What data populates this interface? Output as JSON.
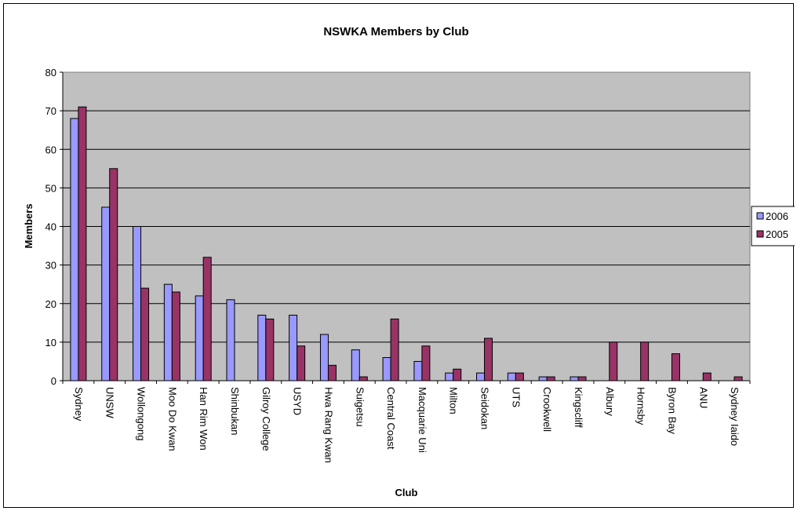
{
  "chart_data": {
    "type": "bar",
    "title": "NSWKA Members by Club",
    "xlabel": "Club",
    "ylabel": "Members",
    "ylim": [
      0,
      80
    ],
    "yticks": [
      "0",
      "10",
      "20",
      "30",
      "40",
      "50",
      "60",
      "70",
      "80"
    ],
    "grid": true,
    "legend_position": "right",
    "plot_background": "#C0C0C0",
    "categories": [
      "Sydney",
      "UNSW",
      "Wollongong",
      "Moo Do Kwan",
      "Han Rim Won",
      "Shinbukan",
      "Gilroy College",
      "USYD",
      "Hwa Rang Kwan",
      "Suigetsu",
      "Central Coast",
      "Macquarie Uni",
      "Milton",
      "Seidokan",
      "UTS",
      "Crookwell",
      "Kingscliff",
      "Albury",
      "Hornsby",
      "Byron Bay",
      "ANU",
      "Sydney Iaido"
    ],
    "series": [
      {
        "name": "2006",
        "color": "#9999FF",
        "values": [
          68,
          45,
          40,
          25,
          22,
          21,
          17,
          17,
          12,
          8,
          6,
          5,
          2,
          2,
          2,
          1,
          1,
          0,
          0,
          0,
          0,
          0
        ]
      },
      {
        "name": "2005",
        "color": "#993366",
        "values": [
          71,
          55,
          24,
          23,
          32,
          0,
          16,
          9,
          4,
          1,
          16,
          9,
          3,
          11,
          2,
          1,
          1,
          10,
          10,
          7,
          2,
          1
        ]
      }
    ]
  }
}
